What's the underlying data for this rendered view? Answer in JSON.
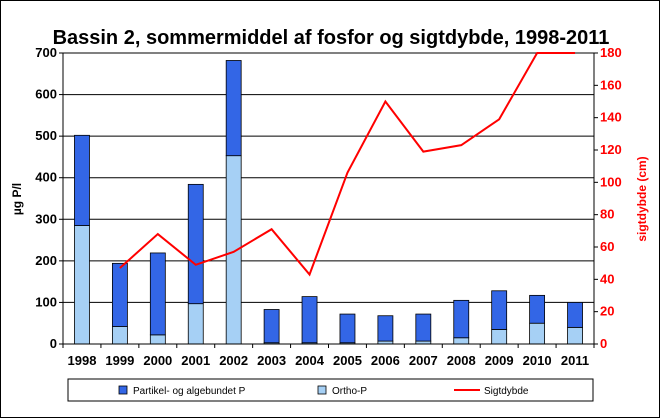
{
  "chart_data": {
    "type": "bar",
    "title": "Bassin 2, sommermiddel  af fosfor  og sigtdybde,  1998-2011",
    "categories": [
      "1998",
      "1999",
      "2000",
      "2001",
      "2002",
      "2003",
      "2004",
      "2005",
      "2006",
      "2007",
      "2008",
      "2009",
      "2010",
      "2011"
    ],
    "ylabel": "µg P/l",
    "y2label": "sigtdybde (cm)",
    "ylim": [
      0,
      700
    ],
    "y2lim": [
      0,
      180
    ],
    "yticks": [
      "0",
      "100",
      "200",
      "300",
      "400",
      "500",
      "600",
      "700"
    ],
    "y2ticks": [
      "0",
      "20",
      "40",
      "60",
      "80",
      "100",
      "120",
      "140",
      "160",
      "180"
    ],
    "grid": true,
    "legend_position": "bottom",
    "stacked": true,
    "series": [
      {
        "name": "Ortho-P",
        "type": "bar",
        "axis": "left",
        "color": "#a6d0f5",
        "values": [
          285,
          42,
          22,
          97,
          453,
          3,
          3,
          3,
          7,
          7,
          15,
          35,
          50,
          40
        ]
      },
      {
        "name": "Partikel- og algebundet P",
        "type": "bar",
        "axis": "left",
        "color": "#3366e6",
        "values": [
          217,
          152,
          197,
          287,
          229,
          80,
          111,
          69,
          61,
          65,
          90,
          93,
          67,
          60
        ]
      },
      {
        "name": "Sigtdybde",
        "type": "line",
        "axis": "right",
        "color": "#ff0000",
        "values": [
          null,
          47,
          68,
          49,
          57,
          71,
          43,
          106,
          150,
          119,
          123,
          139,
          180,
          180
        ]
      }
    ]
  }
}
